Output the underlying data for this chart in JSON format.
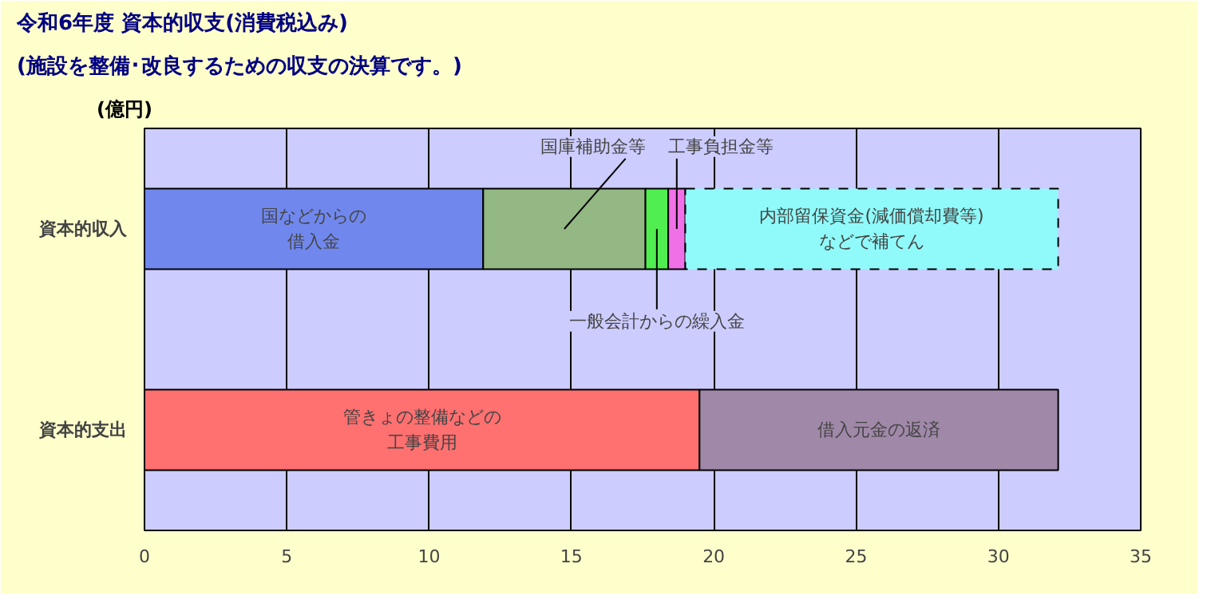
{
  "chart_data": {
    "type": "bar",
    "orientation": "horizontal",
    "stacked": true,
    "title": "令和6年度 資本的収支(消費税込み)",
    "subtitle": "(施設を整備･改良するための収支の決算です。)",
    "ylabel": "(億円)",
    "categories": [
      "資本的収入",
      "資本的支出"
    ],
    "series": [
      {
        "name": "国などからの借入金",
        "color": "#7088ee",
        "values": [
          11.9,
          null
        ]
      },
      {
        "name": "国庫補助金等",
        "color": "#94b884",
        "values": [
          5.7,
          null
        ]
      },
      {
        "name": "一般会計からの繰入金",
        "color": "#50ee50",
        "values": [
          0.8,
          null
        ]
      },
      {
        "name": "工事負担金等",
        "color": "#f070e8",
        "values": [
          0.6,
          null
        ]
      },
      {
        "name": "内部留保資金(減価償却費等)などで補てん",
        "color": "#90fafa",
        "values": [
          13.1,
          null
        ],
        "line_style": "dashed"
      },
      {
        "name": "管きょの整備などの工事費用",
        "color": "#ff7070",
        "values": [
          null,
          19.5
        ]
      },
      {
        "name": "借入元金の返済",
        "color": "#a088a8",
        "values": [
          null,
          12.6
        ]
      }
    ],
    "xlim": [
      0,
      35
    ],
    "xticks": [
      0,
      5,
      10,
      15,
      20,
      25,
      30,
      35
    ],
    "grid": "x"
  }
}
